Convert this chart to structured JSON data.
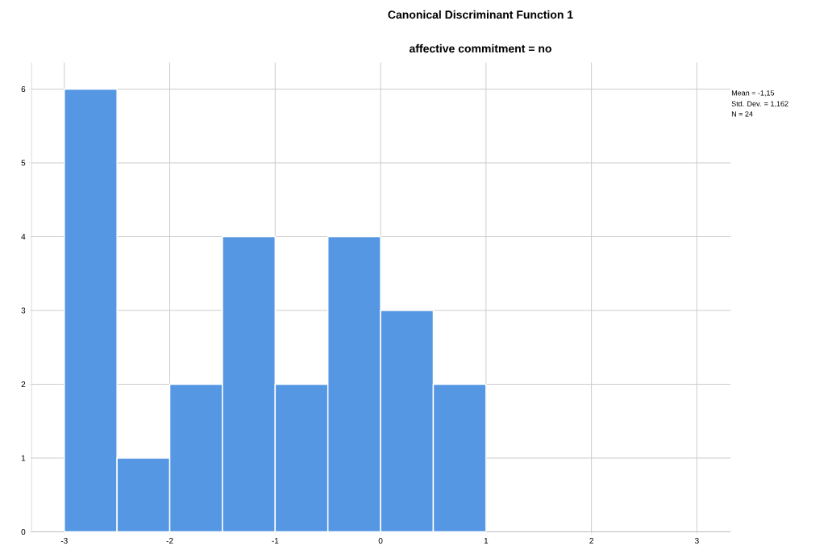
{
  "chart_data": {
    "type": "histogram",
    "title": "Canonical Discriminant Function 1",
    "subtitle": "affective commitment = no",
    "bins": [
      -3,
      -2.5,
      -2,
      -1.5,
      -1,
      -0.5,
      0,
      0.5,
      1
    ],
    "values": [
      6,
      1,
      2,
      4,
      2,
      4,
      3,
      2
    ],
    "color": "#5597e3",
    "xlim": [
      -3.31,
      3.32
    ],
    "ylim": [
      0,
      6.36
    ],
    "xticks": [
      -3,
      -2,
      -1,
      0,
      1,
      2,
      3
    ],
    "yticks": [
      0,
      1,
      2,
      3,
      4,
      5,
      6
    ],
    "grid": true,
    "annotations": [
      "Mean = -1,15",
      "Std. Dev. = 1,162",
      "N = 24"
    ]
  }
}
